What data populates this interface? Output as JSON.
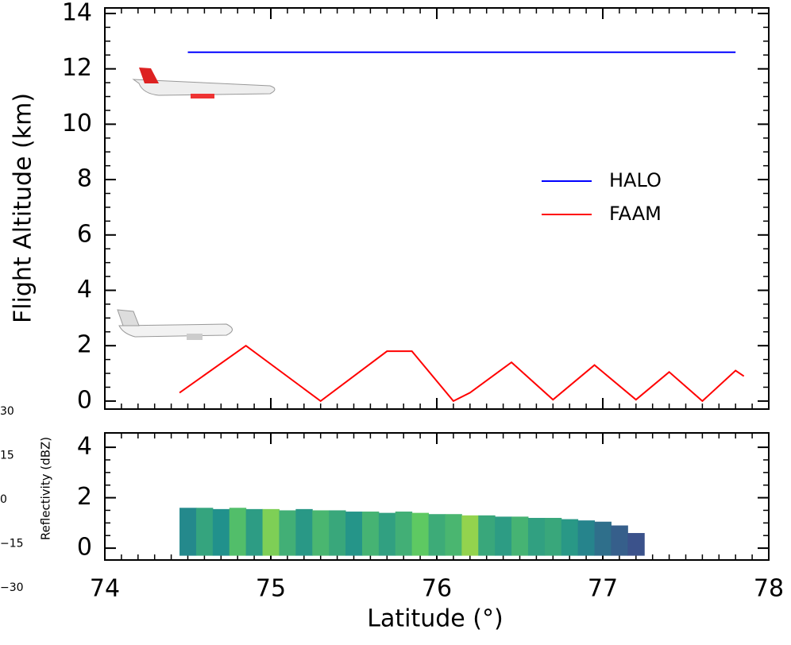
{
  "chart_data": [
    {
      "type": "line",
      "ylabel": "Flight Altitude (km)",
      "xlim": [
        74,
        78
      ],
      "xticks": [
        74,
        75,
        76,
        77,
        78
      ],
      "ylim": [
        -0.29,
        14.2
      ],
      "yticks": [
        0,
        2,
        4,
        6,
        8,
        10,
        12,
        14
      ],
      "legend": "right",
      "series": [
        {
          "name": "HALO",
          "color": "#0000ff",
          "x": [
            74.5,
            77.8
          ],
          "values": [
            12.6,
            12.6
          ]
        },
        {
          "name": "FAAM",
          "color": "#ff0000",
          "x": [
            74.45,
            74.85,
            75.3,
            75.7,
            75.85,
            76.1,
            76.2,
            76.45,
            76.7,
            76.95,
            77.2,
            77.4,
            77.6,
            77.8,
            77.85
          ],
          "values": [
            0.3,
            2.0,
            0.0,
            1.8,
            1.8,
            0.0,
            0.3,
            1.4,
            0.05,
            1.3,
            0.05,
            1.05,
            0.0,
            1.1,
            0.9
          ]
        }
      ]
    },
    {
      "type": "heatmap",
      "xlabel": "Latitude (°)",
      "xlim": [
        74,
        78
      ],
      "xticks": [
        74,
        75,
        76,
        77,
        78
      ],
      "ylim": [
        -0.47,
        4.57
      ],
      "yticks": [
        0,
        2,
        4
      ],
      "base": -0.3,
      "x": [
        74.5,
        74.6,
        74.7,
        74.8,
        74.9,
        75.0,
        75.1,
        75.2,
        75.3,
        75.4,
        75.5,
        75.6,
        75.7,
        75.8,
        75.9,
        76.0,
        76.1,
        76.2,
        76.3,
        76.4,
        76.5,
        76.6,
        76.7,
        76.8,
        76.9,
        77.0,
        77.1,
        77.2
      ],
      "top": [
        1.6,
        1.6,
        1.55,
        1.6,
        1.55,
        1.55,
        1.5,
        1.55,
        1.5,
        1.5,
        1.45,
        1.45,
        1.4,
        1.45,
        1.4,
        1.35,
        1.35,
        1.3,
        1.3,
        1.25,
        1.25,
        1.2,
        1.2,
        1.15,
        1.1,
        1.05,
        0.9,
        0.6
      ],
      "values": [
        -2,
        5,
        0,
        12,
        3,
        18,
        8,
        2,
        10,
        6,
        1,
        9,
        4,
        8,
        15,
        7,
        10,
        20,
        6,
        3,
        9,
        4,
        6,
        2,
        -3,
        -8,
        -12,
        -15
      ],
      "colorbar": {
        "label": "Reflectivity (dBZ)",
        "lim": [
          -30,
          30
        ],
        "ticks": [
          30,
          15,
          0,
          {
            "value": -15,
            "label": "−15"
          },
          {
            "value": -30,
            "label": "−30"
          }
        ]
      }
    }
  ]
}
